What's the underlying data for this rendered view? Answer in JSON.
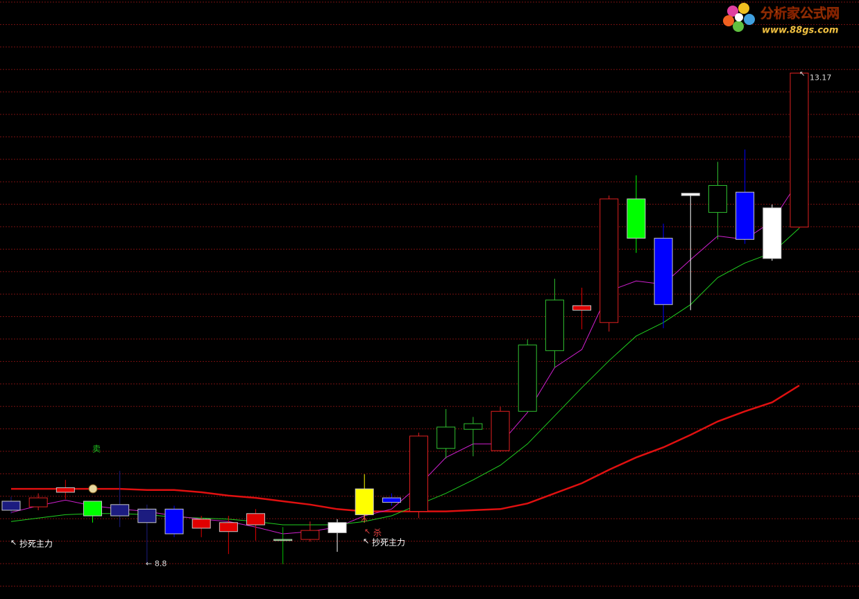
{
  "chart_data": {
    "type": "candlestick",
    "ylim": [
      8.49,
      13.82
    ],
    "open": [
      9.28,
      9.31,
      9.44,
      9.23,
      9.33,
      9.29,
      9.29,
      9.2,
      9.17,
      9.15,
      9.01,
      9.02,
      9.08,
      9.47,
      9.39,
      9.27,
      9.83,
      10.0,
      9.81,
      10.16,
      10.7,
      11.1,
      10.95,
      12.05,
      11.7,
      12.1,
      11.93,
      12.11,
      11.97,
      11.8
    ],
    "high": [
      9.4,
      9.43,
      9.55,
      9.36,
      9.63,
      9.33,
      9.32,
      9.23,
      9.23,
      9.29,
      9.13,
      9.18,
      9.2,
      9.6,
      9.43,
      9.97,
      10.18,
      10.11,
      10.2,
      10.8,
      11.34,
      11.26,
      12.08,
      12.26,
      11.83,
      12.1,
      12.38,
      12.49,
      12.0,
      13.17
    ],
    "low": [
      9.25,
      9.28,
      9.38,
      9.17,
      9.13,
      8.8,
      9.04,
      9.04,
      8.89,
      9.01,
      8.8,
      9.0,
      8.91,
      9.17,
      9.32,
      9.21,
      9.74,
      9.76,
      9.8,
      10.16,
      10.55,
      10.89,
      10.87,
      11.57,
      10.9,
      11.06,
      11.69,
      11.65,
      11.5,
      11.79
    ],
    "close": [
      9.36,
      9.39,
      9.48,
      9.36,
      9.23,
      9.17,
      9.07,
      9.12,
      9.09,
      9.25,
      9.02,
      9.1,
      9.17,
      9.24,
      9.35,
      9.94,
      10.02,
      10.05,
      10.16,
      10.75,
      11.15,
      11.06,
      12.05,
      11.7,
      11.11,
      12.08,
      12.17,
      11.69,
      11.52,
      13.17
    ],
    "colors": [
      "#1c1c80",
      "#e02020",
      "#e00000",
      "#00ff00",
      "#1c1c80",
      "#1c1c80",
      "#0000ff",
      "#e00000",
      "#e00000",
      "#e00000",
      "#00c000",
      "#e02020",
      "#ffffff",
      "#ffff00",
      "#0000ff",
      "#e02020",
      "#30c030",
      "#30c030",
      "#e02020",
      "#30c030",
      "#30c030",
      "#e00000",
      "#e02020",
      "#00ff00",
      "#0000ff",
      "#ffffff",
      "#30c030",
      "#0000ff",
      "#ffffff",
      "#e02020"
    ],
    "hollow": [
      false,
      true,
      false,
      false,
      false,
      false,
      false,
      false,
      false,
      false,
      false,
      true,
      false,
      false,
      false,
      true,
      true,
      true,
      true,
      true,
      true,
      false,
      true,
      false,
      false,
      false,
      true,
      false,
      false,
      true
    ],
    "series": [
      {
        "color": "#e01010",
        "width": 2.5,
        "values": [
          9.47,
          9.47,
          9.47,
          9.47,
          9.47,
          9.46,
          9.46,
          9.44,
          9.41,
          9.39,
          9.36,
          9.33,
          9.29,
          9.27,
          9.27,
          9.27,
          9.27,
          9.28,
          9.29,
          9.34,
          9.43,
          9.52,
          9.64,
          9.75,
          9.84,
          9.95,
          10.07,
          10.16,
          10.24,
          10.39
        ]
      },
      {
        "color": "#20d020",
        "width": 1,
        "values": [
          9.18,
          9.21,
          9.24,
          9.25,
          9.25,
          9.24,
          9.22,
          9.21,
          9.2,
          9.18,
          9.15,
          9.15,
          9.15,
          9.18,
          9.23,
          9.33,
          9.43,
          9.55,
          9.68,
          9.87,
          10.12,
          10.37,
          10.61,
          10.83,
          10.95,
          11.11,
          11.35,
          11.48,
          11.57,
          11.79
        ]
      },
      {
        "color": "#d020d0",
        "width": 1,
        "values": [
          9.26,
          9.32,
          9.37,
          9.32,
          9.29,
          9.27,
          9.23,
          9.2,
          9.18,
          9.13,
          9.07,
          9.09,
          9.13,
          9.23,
          9.29,
          9.5,
          9.75,
          9.87,
          9.87,
          10.15,
          10.55,
          10.71,
          11.23,
          11.32,
          11.29,
          11.51,
          11.72,
          11.69,
          11.85,
          12.22
        ]
      }
    ],
    "annotations": [
      {
        "text": "卖",
        "color": "#20c020"
      },
      {
        "text": "杀",
        "color": "#e04040"
      },
      {
        "text": "抄死主力",
        "color": "#ffffff"
      },
      {
        "text": "抄死主力",
        "color": "#ffffff"
      }
    ],
    "watermark": {
      "title": "分析家公式网",
      "url": "www.88gs.com"
    }
  }
}
